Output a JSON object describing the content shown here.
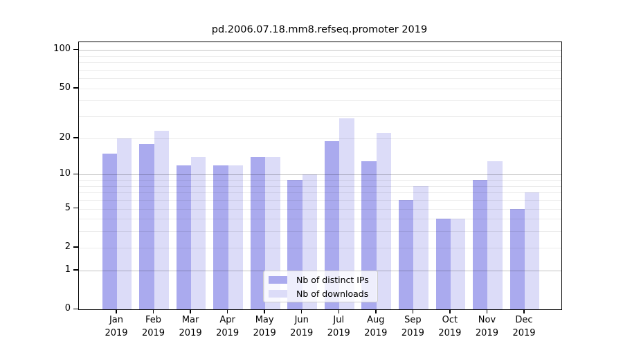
{
  "chart_data": {
    "type": "bar",
    "title": "pd.2006.07.18.mm8.refseq.promoter 2019",
    "categories": [
      "Jan",
      "Feb",
      "Mar",
      "Apr",
      "May",
      "Jun",
      "Jul",
      "Aug",
      "Sep",
      "Oct",
      "Nov",
      "Dec"
    ],
    "category_year": "2019",
    "series": [
      {
        "name": "Nb of distinct IPs",
        "color": "#aaaaee",
        "values": [
          15,
          18,
          12,
          12,
          14,
          9,
          19,
          13,
          6,
          4,
          9,
          5
        ]
      },
      {
        "name": "Nb of downloads",
        "color": "#dcdcf8",
        "values": [
          20,
          23,
          14,
          12,
          14,
          10,
          29,
          22,
          8,
          4,
          13,
          7
        ]
      }
    ],
    "yscale": "log1p",
    "ylim": [
      0,
      115
    ],
    "y_tick_labels": [
      "100",
      "50",
      "20",
      "10",
      "5",
      "2",
      "1",
      "0"
    ],
    "y_tick_values": [
      100,
      50,
      20,
      10,
      5,
      2,
      1,
      0
    ],
    "y_major_gridlines": [
      1,
      10,
      100
    ],
    "y_minor_gridlines": [
      2,
      3,
      4,
      5,
      6,
      7,
      8,
      9,
      20,
      30,
      40,
      50,
      60,
      70,
      80,
      90
    ],
    "grid": true,
    "legend_position": "lower center"
  },
  "colors": {
    "background": "#ffffff",
    "text": "#000000",
    "bar_distinct_ips": "#aaaaee",
    "bar_downloads": "#dcdcf8",
    "major_grid": "rgba(0,0,0,0.235)",
    "minor_grid": "rgba(0,0,0,0.075)",
    "legend_border": "#cccccc"
  }
}
